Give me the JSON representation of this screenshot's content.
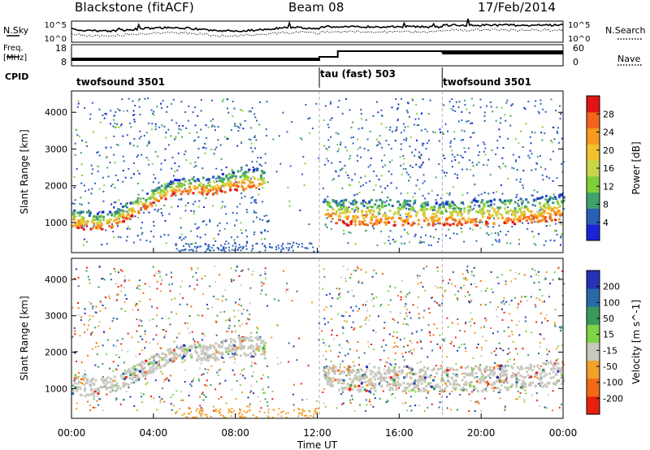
{
  "header": {
    "radar": "Blackstone (fitACF)",
    "beam": "Beam 08",
    "date": "17/Feb/2014"
  },
  "summary_panel": {
    "nsky_label": "N.Sky",
    "nsearch_label": "N.Search",
    "noise_ticks": [
      "10^5",
      "10^0"
    ],
    "freq_label_line1": "Freq.",
    "freq_label_line2": "[MHz]",
    "freq_ticks": [
      "18",
      "8"
    ],
    "nave_label": "Nave",
    "nave_ticks": [
      "60",
      "0"
    ],
    "cpid_label": "CPID"
  },
  "cpid_segments": [
    {
      "label": "twofsound 3501",
      "start_hour": 0
    },
    {
      "label": "tau (fast) 503",
      "start_hour": 12.1
    },
    {
      "label": "twofsound 3501",
      "start_hour": 18.1
    }
  ],
  "chart_data": [
    {
      "type": "heatmap",
      "title": "Power",
      "xlabel": "Time UT",
      "ylabel": "Slant Range [km]",
      "xlim": [
        0,
        24
      ],
      "ylim": [
        180,
        4580
      ],
      "x_ticks": [
        "00:00",
        "04:00",
        "08:00",
        "12:00",
        "16:00",
        "20:00",
        "00:00"
      ],
      "y_ticks": [
        1000,
        2000,
        3000,
        4000
      ],
      "colorbar": {
        "label": "Power [dB]",
        "ticks": [
          4,
          8,
          12,
          16,
          20,
          24,
          28
        ],
        "range": [
          0,
          32
        ],
        "colors": [
          "#1a23d6",
          "#2a5fb8",
          "#3fa26d",
          "#7fcf3a",
          "#c8d64a",
          "#f2c22e",
          "#f79a1f",
          "#f2641a",
          "#e11414"
        ]
      },
      "main_echo_band_km": [
        {
          "hour": 0.0,
          "lower": 850,
          "upper": 1450
        },
        {
          "hour": 1.0,
          "lower": 800,
          "upper": 1300
        },
        {
          "hour": 2.0,
          "lower": 900,
          "upper": 1350
        },
        {
          "hour": 3.0,
          "lower": 1200,
          "upper": 1650
        },
        {
          "hour": 4.0,
          "lower": 1500,
          "upper": 1950
        },
        {
          "hour": 5.0,
          "lower": 1800,
          "upper": 2200
        },
        {
          "hour": 6.0,
          "lower": 1800,
          "upper": 2250
        },
        {
          "hour": 7.0,
          "lower": 1800,
          "upper": 2300
        },
        {
          "hour": 8.0,
          "lower": 1900,
          "upper": 2450
        },
        {
          "hour": 9.0,
          "lower": 1950,
          "upper": 2500
        },
        {
          "hour": 12.3,
          "lower": 1200,
          "upper": 1700
        },
        {
          "hour": 13.0,
          "lower": 950,
          "upper": 1650
        },
        {
          "hour": 16.0,
          "lower": 950,
          "upper": 1650
        },
        {
          "hour": 18.0,
          "lower": 950,
          "upper": 1600
        },
        {
          "hour": 20.0,
          "lower": 950,
          "upper": 1650
        },
        {
          "hour": 22.0,
          "lower": 1000,
          "upper": 1700
        },
        {
          "hour": 24.0,
          "lower": 1100,
          "upper": 1800
        }
      ]
    },
    {
      "type": "heatmap",
      "title": "Velocity",
      "xlabel": "Time UT",
      "ylabel": "Slant Range [km]",
      "xlim": [
        0,
        24
      ],
      "ylim": [
        180,
        4580
      ],
      "x_ticks": [
        "00:00",
        "04:00",
        "08:00",
        "12:00",
        "16:00",
        "20:00",
        "00:00"
      ],
      "y_ticks": [
        1000,
        2000,
        3000,
        4000
      ],
      "colorbar": {
        "label": "Velocity [m s^-1]",
        "ticks": [
          200,
          100,
          50,
          15,
          -15,
          -50,
          -100,
          -200
        ],
        "colors": [
          "#2532b6",
          "#2a6aa8",
          "#3a9a5a",
          "#7ed346",
          "#c8c8c0",
          "#f2a028",
          "#f26a14",
          "#e82010"
        ]
      }
    }
  ]
}
